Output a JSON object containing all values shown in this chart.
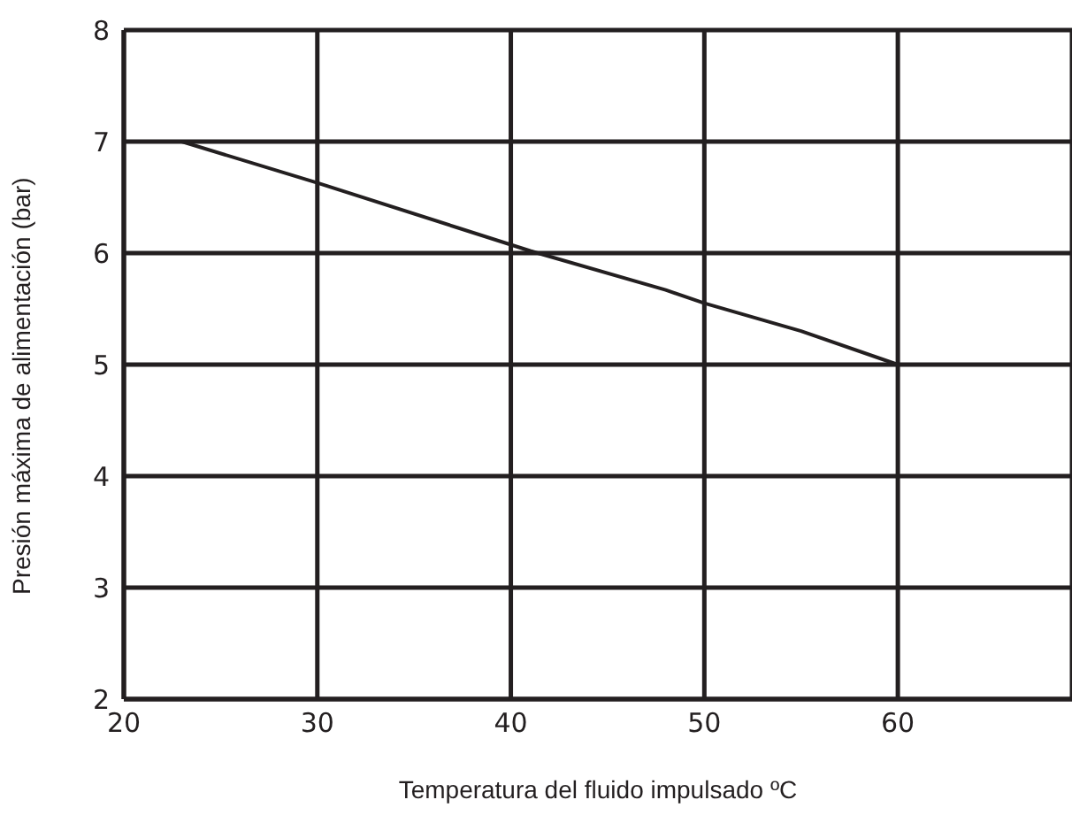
{
  "chart_data": {
    "type": "line",
    "xlabel": "Temperatura del fluido impulsado ºC",
    "ylabel": "Presión máxima de alimentación (bar)",
    "x": [
      23,
      30,
      41,
      48,
      50,
      55,
      60
    ],
    "series": [
      {
        "color": "#231f20",
        "values": [
          7,
          6.63,
          6.02,
          5.67,
          5.55,
          5.3,
          5
        ]
      }
    ],
    "xlim": [
      20,
      69
    ],
    "ylim": [
      2,
      8
    ],
    "xticks": [
      20,
      30,
      40,
      50,
      60
    ],
    "yticks": [
      2,
      3,
      4,
      5,
      6,
      7,
      8
    ],
    "grid": true,
    "marker": "none",
    "line_style": "solid",
    "legend": false
  }
}
